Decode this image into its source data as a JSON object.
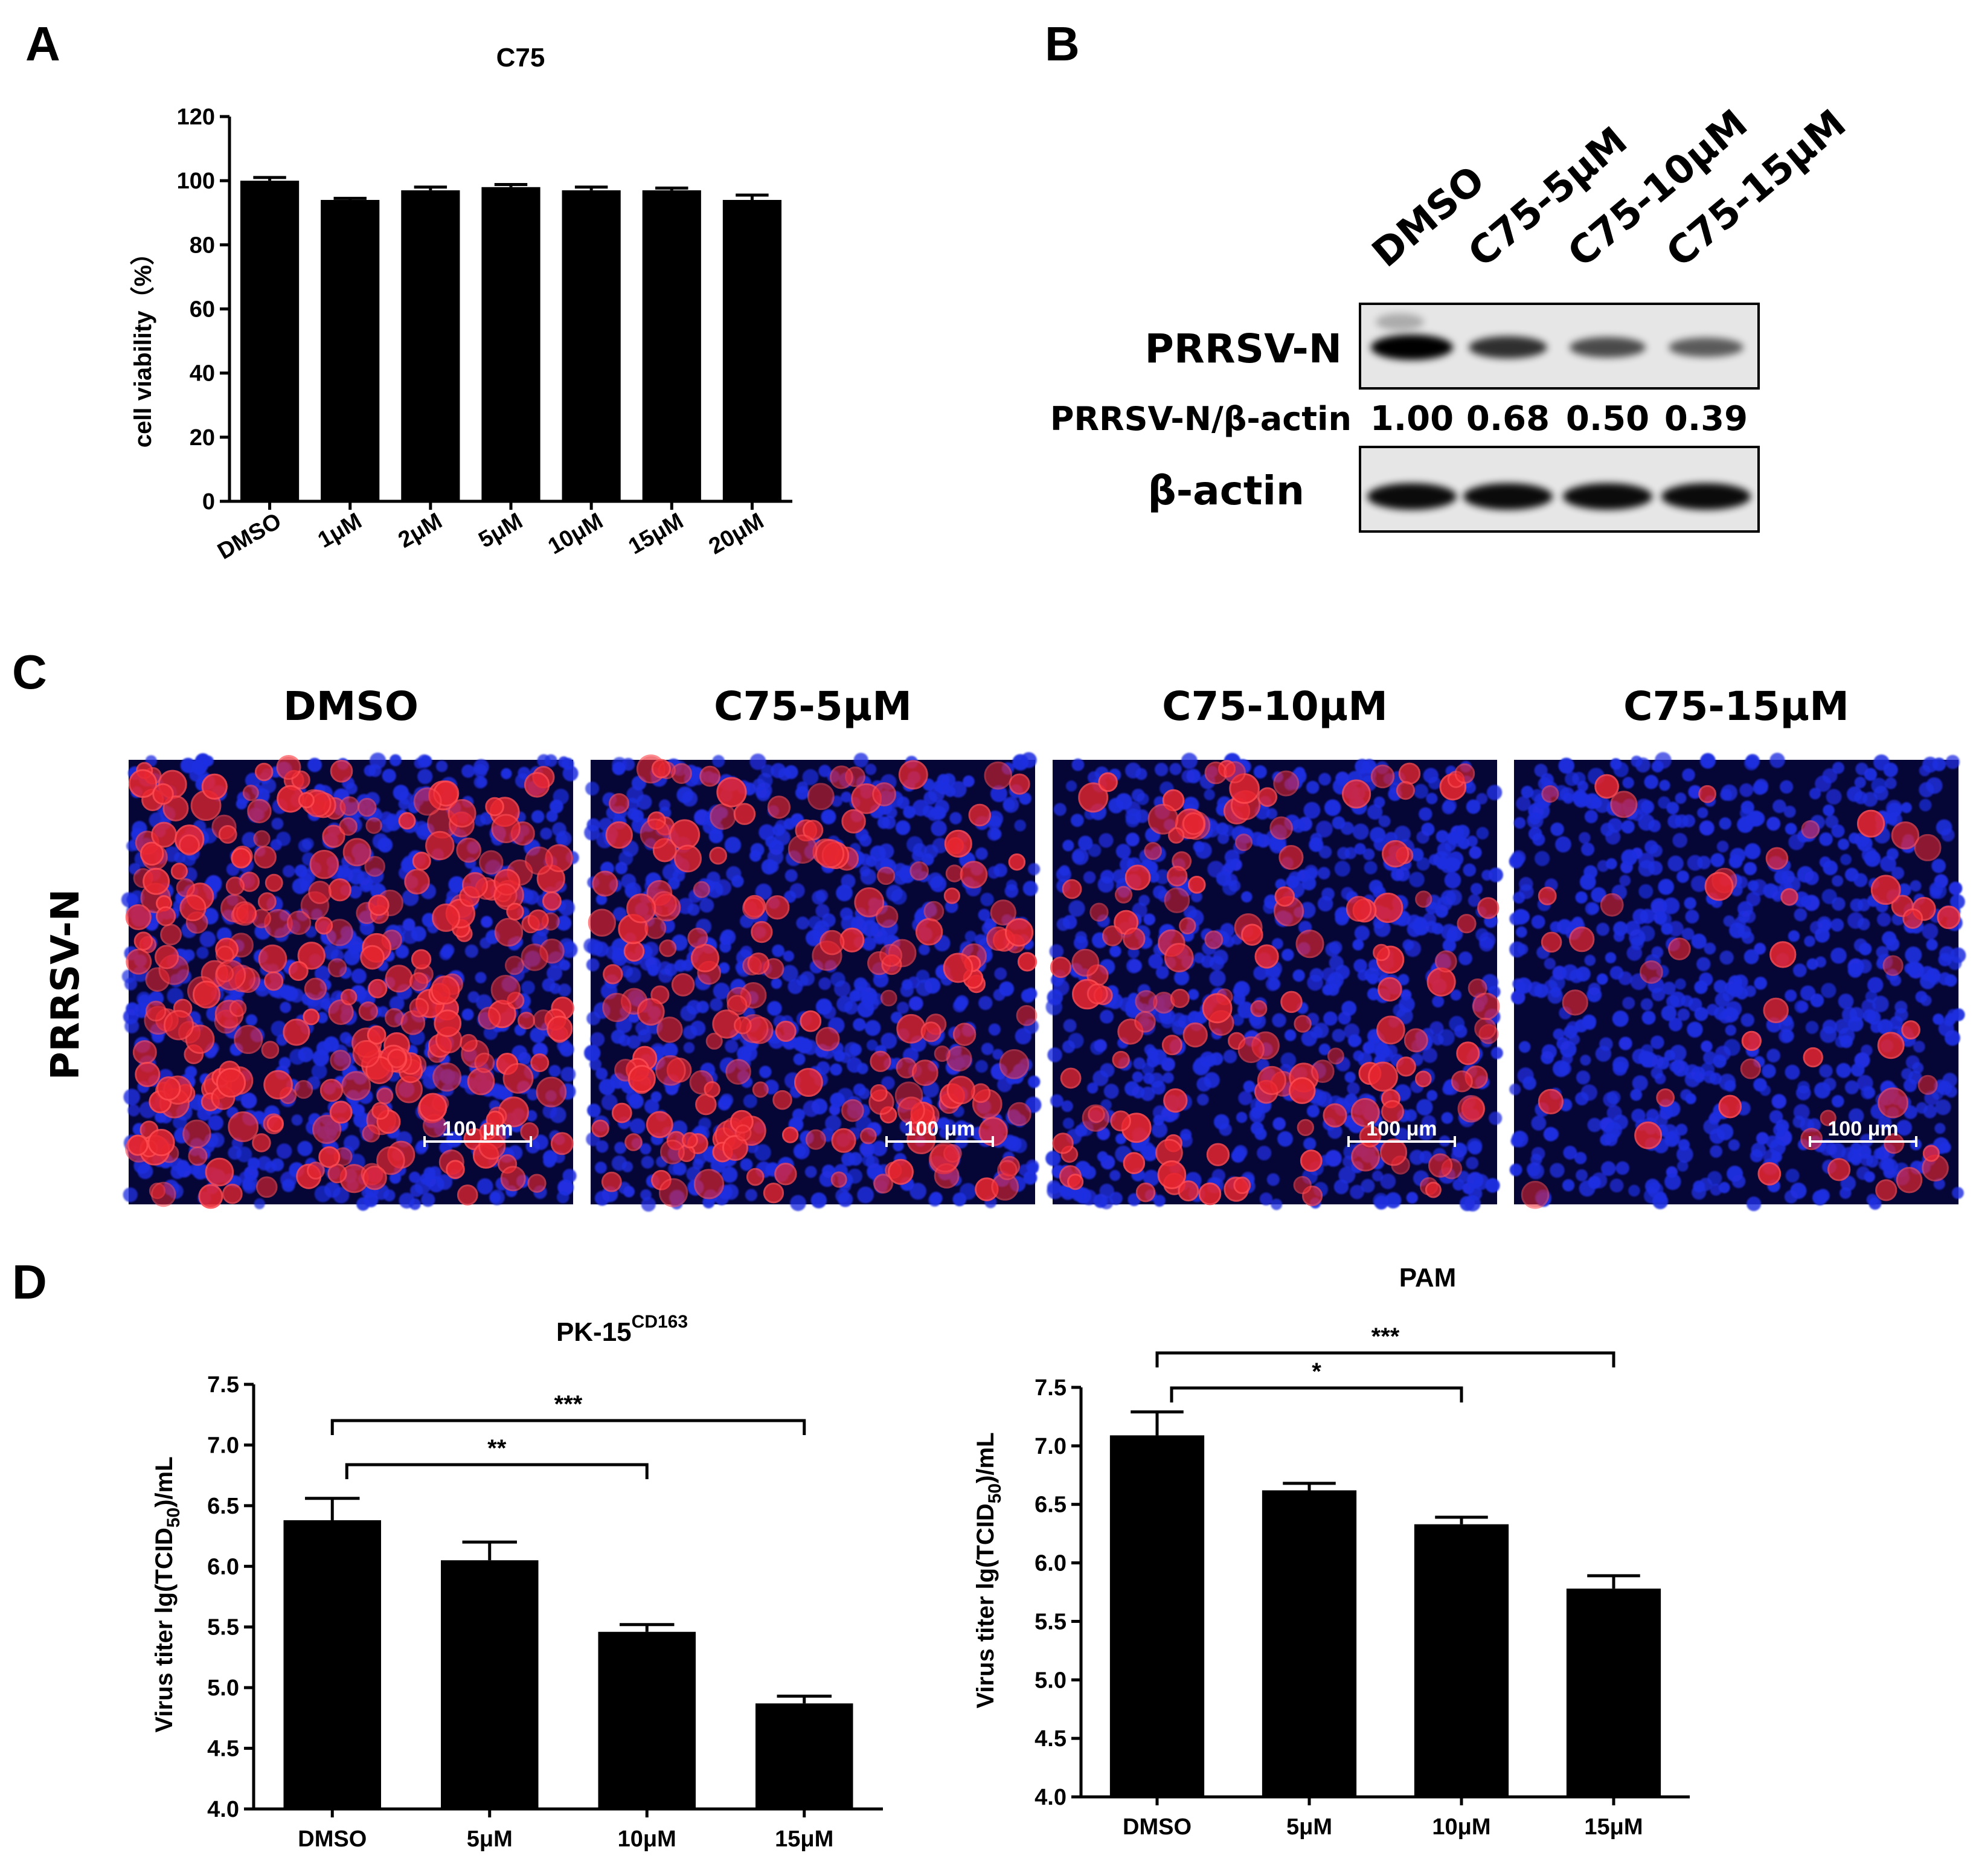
{
  "panels": {
    "A": "A",
    "B": "B",
    "C": "C",
    "D": "D"
  },
  "chart_data": [
    {
      "type": "bar",
      "title": "C75",
      "ylabel": "cell viability（%）",
      "categories": [
        "DMSO",
        "1μM",
        "2μM",
        "5μM",
        "10μM",
        "15μM",
        "20μM"
      ],
      "values": [
        100,
        94,
        97,
        98,
        97,
        97,
        94
      ],
      "errors": [
        1,
        0.5,
        1,
        0.8,
        1,
        0.7,
        1.5
      ],
      "ylim": [
        0,
        120
      ],
      "yticks": [
        "0",
        "20",
        "40",
        "60",
        "80",
        "100",
        "120"
      ],
      "color": "#000000"
    },
    {
      "type": "bar",
      "title": "PK-15",
      "title_superscript": "CD163",
      "ylabel_parts": [
        "Virus titer lg(TCID",
        "50",
        ")/mL"
      ],
      "categories": [
        "DMSO",
        "5μM",
        "10μM",
        "15μM"
      ],
      "values": [
        6.38,
        6.05,
        5.46,
        4.87
      ],
      "errors": [
        0.18,
        0.15,
        0.06,
        0.06
      ],
      "ylim": [
        4.0,
        7.5
      ],
      "yticks": [
        "4.0",
        "4.5",
        "5.0",
        "5.5",
        "6.0",
        "6.5",
        "7.0",
        "7.5"
      ],
      "significance": [
        {
          "from": 0,
          "to": 2,
          "label": "**"
        },
        {
          "from": 0,
          "to": 3,
          "label": "***"
        }
      ],
      "color": "#000000"
    },
    {
      "type": "bar",
      "title": "PAM",
      "ylabel_parts": [
        "Virus titer lg(TCID",
        "50",
        ")/mL"
      ],
      "categories": [
        "DMSO",
        "5μM",
        "10μM",
        "15μM"
      ],
      "values": [
        7.09,
        6.62,
        6.33,
        5.78
      ],
      "errors": [
        0.2,
        0.06,
        0.06,
        0.11
      ],
      "ylim": [
        4.0,
        7.5
      ],
      "yticks": [
        "4.0",
        "4.5",
        "5.0",
        "5.5",
        "6.0",
        "6.5",
        "7.0",
        "7.5"
      ],
      "significance": [
        {
          "from": 0,
          "to": 2,
          "label": "*"
        },
        {
          "from": 0,
          "to": 3,
          "label": "***"
        }
      ],
      "color": "#000000"
    }
  ],
  "western_blot": {
    "lanes": [
      "DMSO",
      "C75-5μM",
      "C75-10μM",
      "C75-15μM"
    ],
    "target_label": "PRRSV-N",
    "ratio_label": "PRRSV-N/β-actin",
    "ratios": [
      "1.00",
      "0.68",
      "0.50",
      "0.39"
    ],
    "loading_label": "β-actin"
  },
  "if_images": {
    "row_label": "PRRSV-N",
    "columns": [
      "DMSO",
      "C75-5μM",
      "C75-10μM",
      "C75-15μM"
    ],
    "infection_level": [
      0.85,
      0.55,
      0.42,
      0.14
    ],
    "scale_bar": "100 μm",
    "nucleus_color": "#1f2fe0",
    "infected_color": "#e82630"
  }
}
